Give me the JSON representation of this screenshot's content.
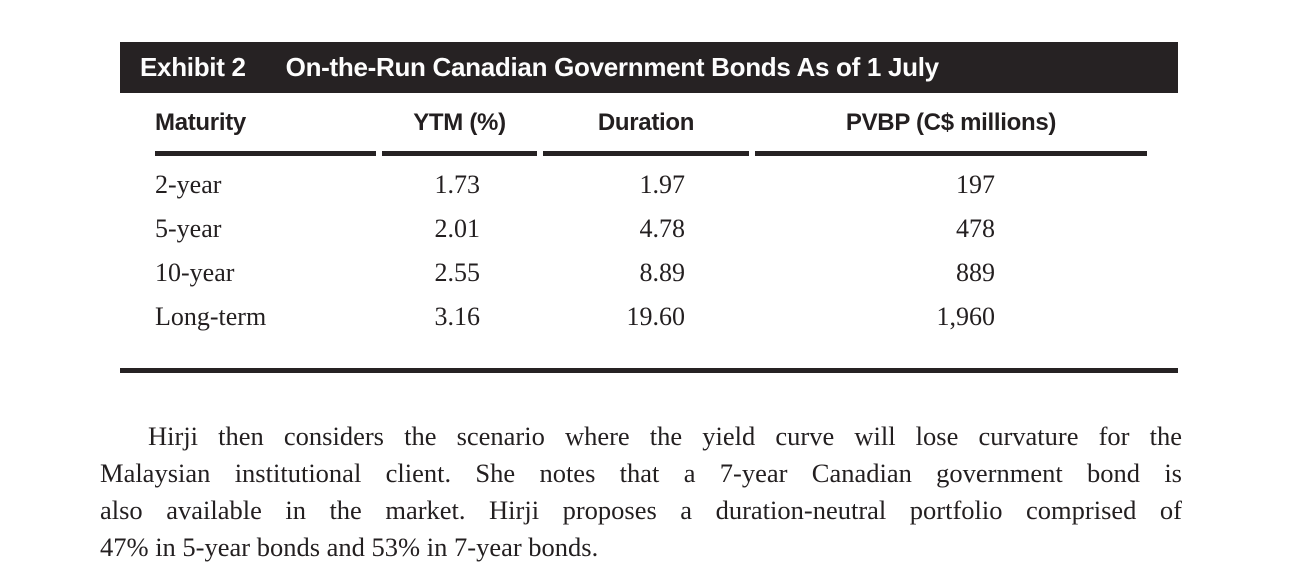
{
  "exhibit": {
    "label": "Exhibit 2",
    "title": "On-the-Run Canadian Government Bonds As of 1 July",
    "table": {
      "columns": [
        "Maturity",
        "YTM (%)",
        "Duration",
        "PVBP (C$ millions)"
      ],
      "rows": [
        {
          "maturity": "2-year",
          "ytm": "1.73",
          "duration": "1.97",
          "pvbp": "197"
        },
        {
          "maturity": "5-year",
          "ytm": "2.01",
          "duration": "4.78",
          "pvbp": "478"
        },
        {
          "maturity": "10-year",
          "ytm": "2.55",
          "duration": "8.89",
          "pvbp": "889"
        },
        {
          "maturity": "Long-term",
          "ytm": "3.16",
          "duration": "19.60",
          "pvbp": "1,960"
        }
      ]
    }
  },
  "paragraph": {
    "lines": [
      "Hirji then considers the scenario where the yield curve will lose curvature for the",
      "Malaysian institutional client. She notes that a 7-year Canadian government bond is",
      "also available in the market. Hirji proposes a duration-neutral portfolio comprised of",
      "47% in 5-year bonds and 53% in 7-year bonds."
    ],
    "full_text": "Hirji then considers the scenario where the yield curve will lose curvature for the Malaysian institutional client. She notes that a 7-year Canadian government bond is also available in the market. Hirji proposes a duration-neutral portfolio comprised of 47% in 5-year bonds and 53% in 7-year bonds."
  },
  "colors": {
    "exhibit_bar_background": "#262223",
    "rule": "#262223",
    "text": "#231f20",
    "exhibit_bar_text": "#fdfdfd",
    "page_background": "#ffffff"
  }
}
